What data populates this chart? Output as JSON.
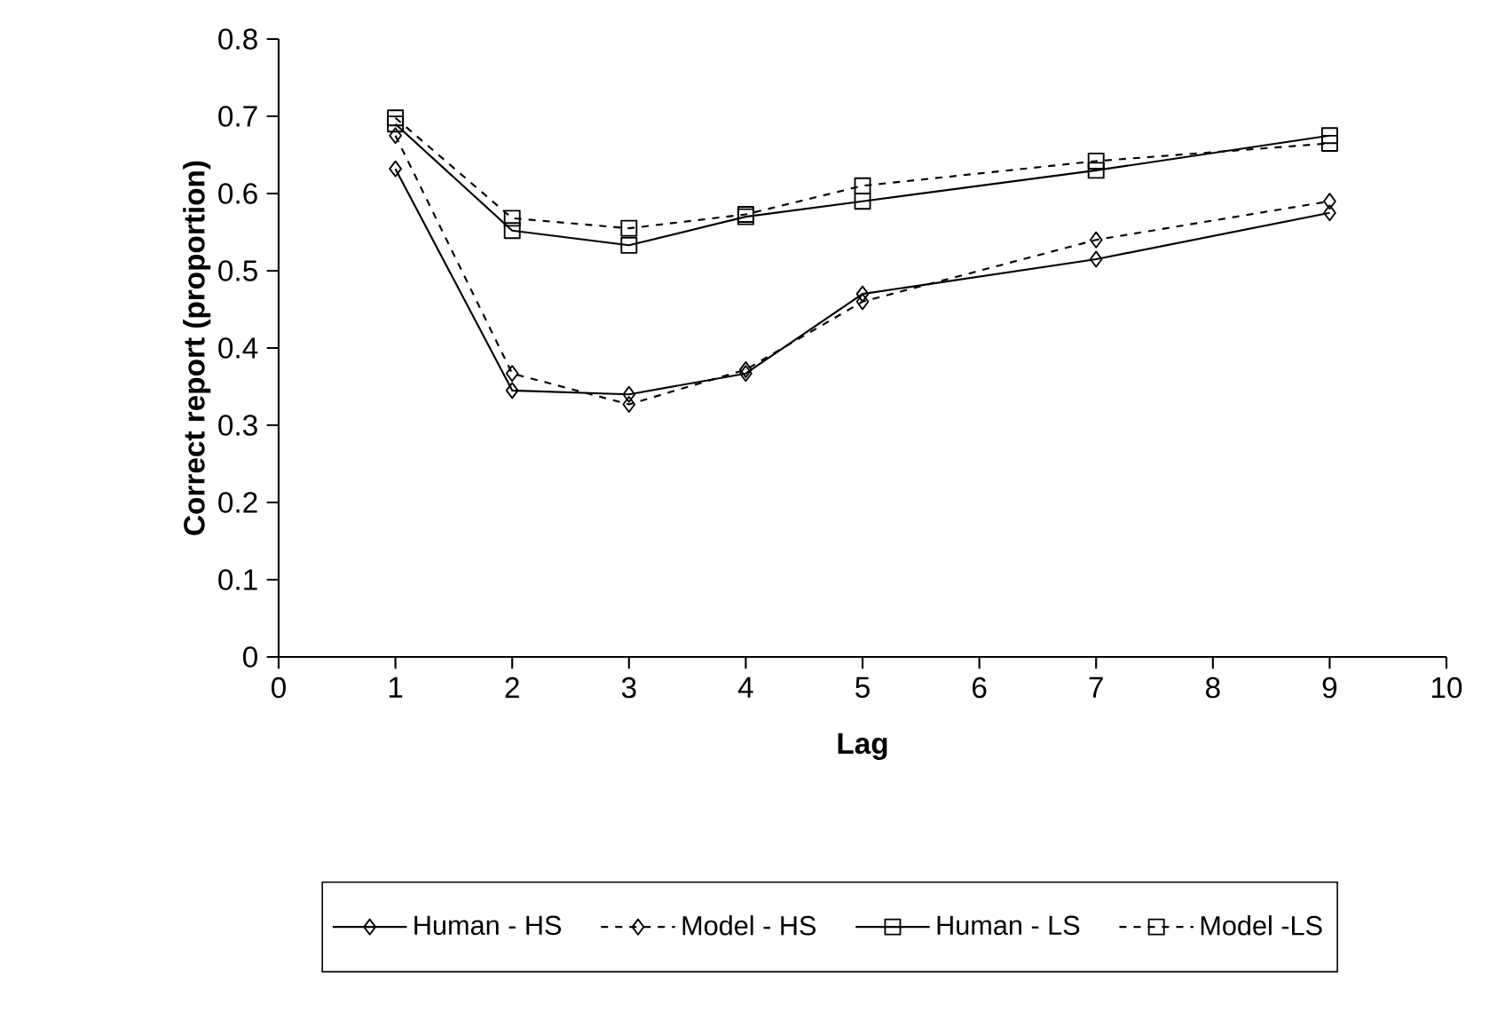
{
  "chart_data": {
    "type": "line",
    "xlabel": "Lag",
    "ylabel": "Correct report (proportion)",
    "x": [
      1,
      2,
      3,
      4,
      5,
      7,
      9
    ],
    "series": [
      {
        "name": "Human - HS",
        "color": "#000000",
        "marker": "diamond",
        "line_style": "solid",
        "values": [
          0.632,
          0.345,
          0.34,
          0.367,
          0.47,
          0.515,
          0.575
        ]
      },
      {
        "name": "Model - HS",
        "color": "#000000",
        "marker": "diamond",
        "line_style": "dashed",
        "values": [
          0.675,
          0.367,
          0.327,
          0.372,
          0.46,
          0.54,
          0.59
        ]
      },
      {
        "name": "Human - LS",
        "color": "#000000",
        "marker": "square",
        "line_style": "solid",
        "values": [
          0.69,
          0.552,
          0.533,
          0.57,
          0.59,
          0.63,
          0.675
        ]
      },
      {
        "name": "Model -LS",
        "color": "#000000",
        "marker": "square",
        "line_style": "dashed",
        "values": [
          0.698,
          0.568,
          0.555,
          0.573,
          0.61,
          0.642,
          0.665
        ]
      }
    ],
    "xlim": [
      0,
      10
    ],
    "ylim": [
      0,
      0.8
    ],
    "xticks": [
      0,
      1,
      2,
      3,
      4,
      5,
      6,
      7,
      8,
      9,
      10
    ],
    "yticks": [
      0,
      0.1,
      0.2,
      0.3,
      0.4,
      0.5,
      0.6,
      0.7,
      0.8
    ],
    "grid": false,
    "legend": "bottom"
  }
}
